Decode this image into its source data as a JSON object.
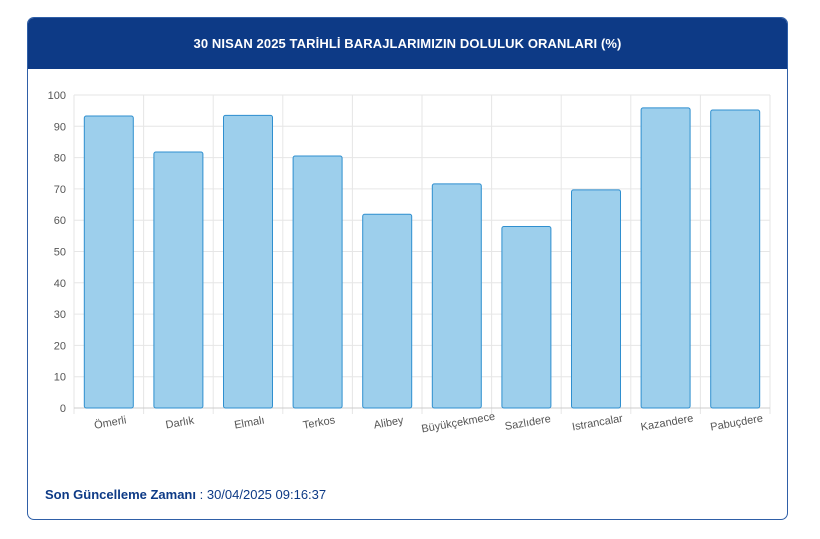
{
  "header": {
    "title": "30 NISAN 2025 TARİHLİ BARAJLARIMIZIN DOLULUK ORANLARI (%)"
  },
  "footer": {
    "label": "Son Güncelleme Zamanı",
    "separator": " : ",
    "timestamp": "30/04/2025 09:16:37"
  },
  "colors": {
    "header_bg": "#0d3a86",
    "bar_fill": "#9dcfec",
    "bar_stroke": "#2f8fcf",
    "grid": "#e6e6e6",
    "footer_text": "#0d3a86"
  },
  "chart_data": {
    "type": "bar",
    "categories": [
      "Ömerli",
      "Darlık",
      "Elmalı",
      "Terkos",
      "Alibey",
      "Büyükçekmece",
      "Sazlıdere",
      "Istrancalar",
      "Kazandere",
      "Pabuçdere"
    ],
    "values": [
      93.3,
      81.8,
      93.5,
      80.5,
      61.9,
      71.6,
      58.0,
      69.7,
      95.9,
      95.2
    ],
    "ylim": [
      0,
      100
    ],
    "yticks": [
      0,
      10,
      20,
      30,
      40,
      50,
      60,
      70,
      80,
      90,
      100
    ],
    "grid": true,
    "legend": false,
    "xlabel_rotation": "slanted"
  }
}
